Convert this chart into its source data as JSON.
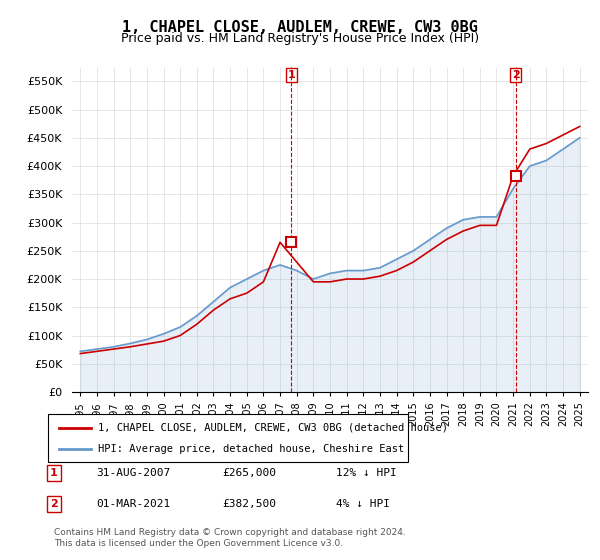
{
  "title": "1, CHAPEL CLOSE, AUDLEM, CREWE, CW3 0BG",
  "subtitle": "Price paid vs. HM Land Registry's House Price Index (HPI)",
  "legend_line1": "1, CHAPEL CLOSE, AUDLEM, CREWE, CW3 0BG (detached house)",
  "legend_line2": "HPI: Average price, detached house, Cheshire East",
  "transaction1_label": "1",
  "transaction1_date": "31-AUG-2007",
  "transaction1_price": "£265,000",
  "transaction1_hpi": "12% ↓ HPI",
  "transaction2_label": "2",
  "transaction2_date": "01-MAR-2021",
  "transaction2_price": "£382,500",
  "transaction2_hpi": "4% ↓ HPI",
  "footer": "Contains HM Land Registry data © Crown copyright and database right 2024.\nThis data is licensed under the Open Government Licence v3.0.",
  "red_color": "#cc0000",
  "blue_color": "#6699cc",
  "marker_box_color": "#cc0000",
  "ylim_min": 0,
  "ylim_max": 575000,
  "yticks": [
    0,
    50000,
    100000,
    150000,
    200000,
    250000,
    300000,
    350000,
    400000,
    450000,
    500000,
    550000
  ],
  "ytick_labels": [
    "£0",
    "£50K",
    "£100K",
    "£150K",
    "£200K",
    "£250K",
    "£300K",
    "£350K",
    "£400K",
    "£450K",
    "£500K",
    "£550K"
  ],
  "hpi_years": [
    1995,
    1996,
    1997,
    1998,
    1999,
    2000,
    2001,
    2002,
    2003,
    2004,
    2005,
    2006,
    2007,
    2008,
    2009,
    2010,
    2011,
    2012,
    2013,
    2014,
    2015,
    2016,
    2017,
    2018,
    2019,
    2020,
    2021,
    2022,
    2023,
    2024,
    2025
  ],
  "hpi_values": [
    72000,
    76000,
    80000,
    86000,
    93000,
    103000,
    115000,
    135000,
    160000,
    185000,
    200000,
    215000,
    225000,
    215000,
    200000,
    210000,
    215000,
    215000,
    220000,
    235000,
    250000,
    270000,
    290000,
    305000,
    310000,
    310000,
    360000,
    400000,
    410000,
    430000,
    450000
  ],
  "red_years": [
    1995,
    1996,
    1997,
    1998,
    1999,
    2000,
    2001,
    2002,
    2003,
    2004,
    2005,
    2006,
    2007,
    2008,
    2009,
    2010,
    2011,
    2012,
    2013,
    2014,
    2015,
    2016,
    2017,
    2018,
    2019,
    2020,
    2021,
    2022,
    2023,
    2024,
    2025
  ],
  "red_values": [
    68000,
    72000,
    76000,
    80000,
    85000,
    90000,
    100000,
    120000,
    145000,
    165000,
    175000,
    195000,
    265000,
    230000,
    195000,
    195000,
    200000,
    200000,
    205000,
    215000,
    230000,
    250000,
    270000,
    285000,
    295000,
    295000,
    382500,
    430000,
    440000,
    455000,
    470000
  ],
  "marker1_x": 2007.67,
  "marker1_y": 265000,
  "marker2_x": 2021.17,
  "marker2_y": 382500,
  "xtick_years": [
    1995,
    1996,
    1997,
    1998,
    1999,
    2000,
    2001,
    2002,
    2003,
    2004,
    2005,
    2006,
    2007,
    2008,
    2009,
    2010,
    2011,
    2012,
    2013,
    2014,
    2015,
    2016,
    2017,
    2018,
    2019,
    2020,
    2021,
    2022,
    2023,
    2024,
    2025
  ]
}
